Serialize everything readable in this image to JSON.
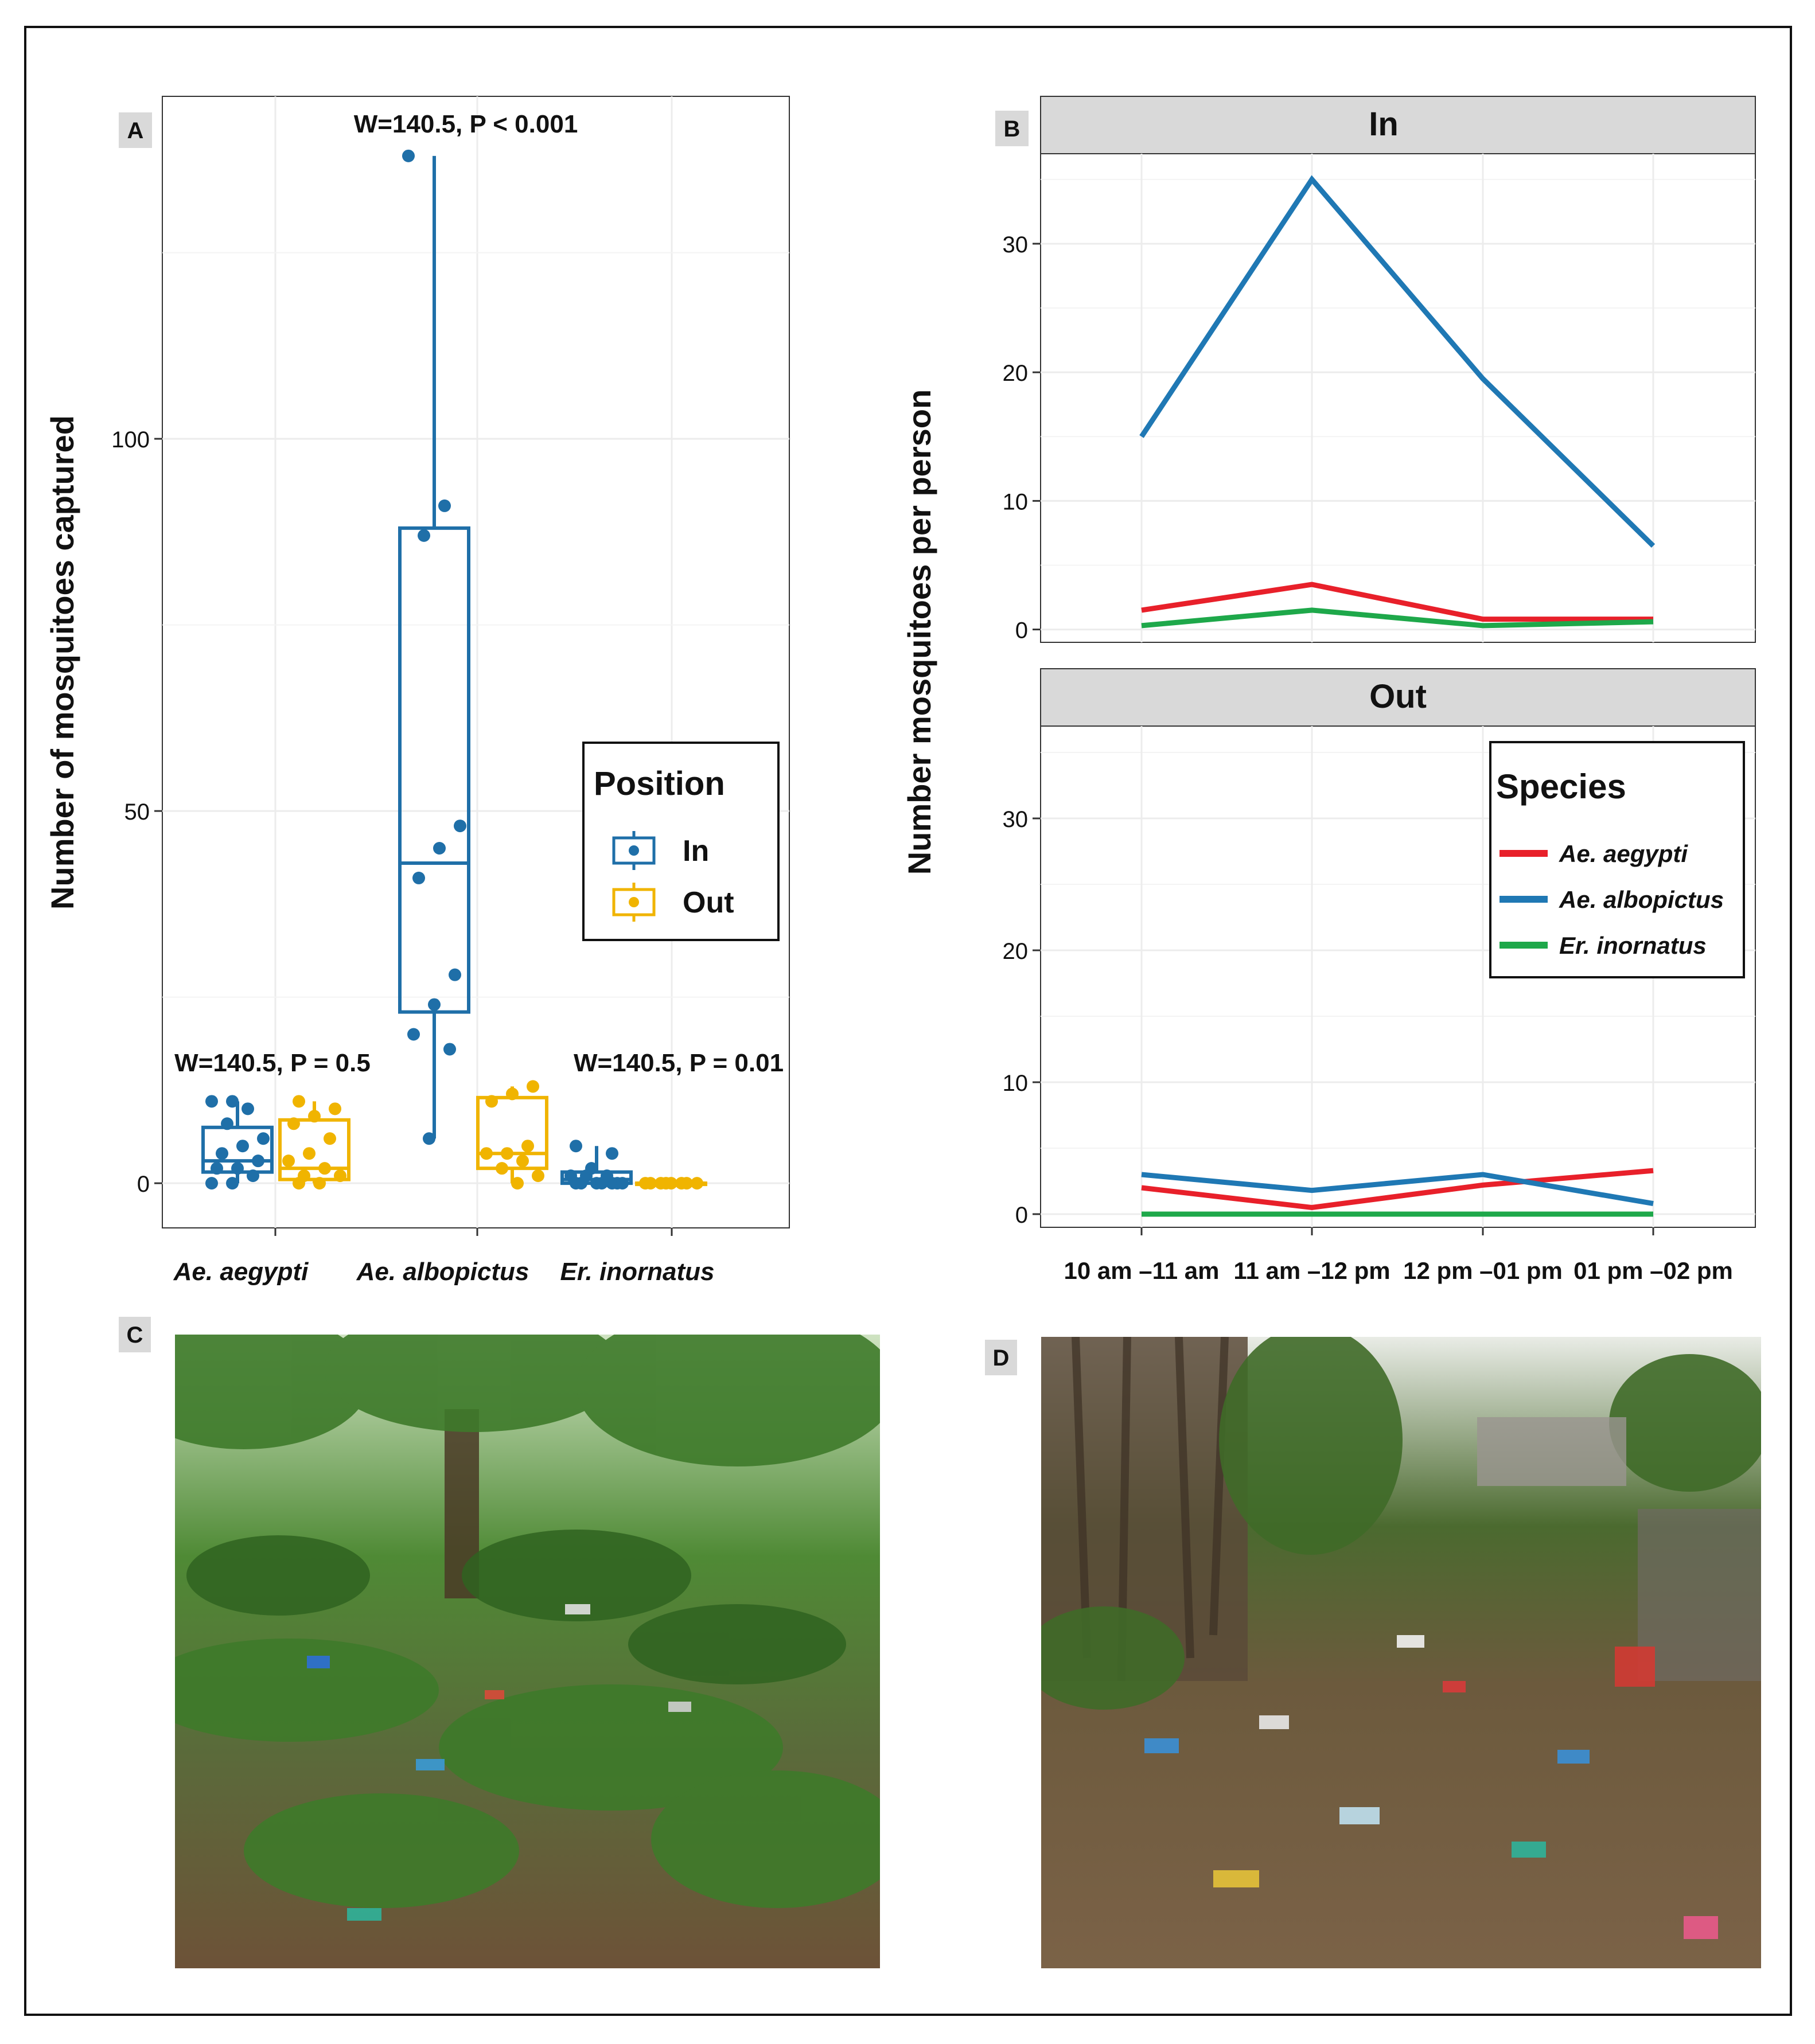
{
  "panels": {
    "A": {
      "label": "A"
    },
    "B": {
      "label": "B"
    },
    "C": {
      "label": "C"
    },
    "D": {
      "label": "D"
    }
  },
  "colors": {
    "in": "#1f6fa8",
    "out": "#f0b400",
    "aegypti": "#e8202a",
    "albopictus": "#1f78b4",
    "inornatus": "#1ea84a",
    "strip_bg": "#d9d9d9",
    "grid": "#ececec"
  },
  "chart_data": [
    {
      "type": "box",
      "ylabel": "Number of mosquitoes captured",
      "xlabel": "",
      "ylim": [
        -6,
        146
      ],
      "yticks": [
        0,
        50,
        100
      ],
      "categories": [
        "Ae. aegypti",
        "Ae. albopictus",
        "Er. inornatus"
      ],
      "annotations": [
        "W=140.5, P = 0.5",
        "W=140.5, P < 0.001",
        "W=140.5, P = 0.01"
      ],
      "legend": {
        "title": "Position",
        "position": "right",
        "entries": [
          "In",
          "Out"
        ]
      },
      "groups": [
        {
          "category": "Ae. aegypti",
          "position": "In",
          "min": 0,
          "q1": 1.5,
          "median": 3,
          "q3": 7.5,
          "max": 11,
          "points": [
            0,
            0,
            1,
            2,
            2,
            3,
            4,
            5,
            6,
            8,
            10,
            11,
            11
          ]
        },
        {
          "category": "Ae. aegypti",
          "position": "Out",
          "min": 0,
          "q1": 0.5,
          "median": 2,
          "q3": 8.5,
          "max": 11,
          "points": [
            0,
            0,
            1,
            1,
            2,
            3,
            4,
            6,
            8,
            9,
            10,
            11
          ]
        },
        {
          "category": "Ae. albopictus",
          "position": "In",
          "min": 6,
          "q1": 23,
          "median": 43,
          "q3": 88,
          "max": 138,
          "points": [
            6,
            18,
            20,
            24,
            28,
            41,
            45,
            48,
            87,
            91,
            138
          ]
        },
        {
          "category": "Ae. albopictus",
          "position": "Out",
          "min": 0,
          "q1": 2,
          "median": 4,
          "q3": 11.5,
          "max": 13,
          "points": [
            0,
            1,
            2,
            3,
            4,
            4,
            5,
            11,
            12,
            13
          ]
        },
        {
          "category": "Er. inornatus",
          "position": "In",
          "min": 0,
          "q1": 0,
          "median": 0.5,
          "q3": 1.5,
          "max": 5,
          "points": [
            0,
            0,
            0,
            0,
            0,
            0,
            0,
            1,
            1,
            1,
            2,
            4,
            5
          ]
        },
        {
          "category": "Er. inornatus",
          "position": "Out",
          "min": 0,
          "q1": 0,
          "median": 0,
          "q3": 0,
          "max": 0,
          "points": [
            0,
            0,
            0,
            0,
            0,
            0,
            0,
            0
          ]
        }
      ]
    },
    {
      "type": "line",
      "ylabel": "Number mosquitoes per person",
      "x": [
        "10 am –11 am",
        "11 am –12 pm",
        "12 pm –01 pm",
        "01 pm –02 pm"
      ],
      "ylim": [
        -1,
        37
      ],
      "yticks": [
        0,
        10,
        20,
        30
      ],
      "legend": {
        "title": "Species",
        "position": "inside top-right of Out panel"
      },
      "facets": [
        {
          "name": "In",
          "series": [
            {
              "name": "Ae. aegypti",
              "values": [
                1.5,
                3.5,
                0.8,
                0.8
              ]
            },
            {
              "name": "Ae. albopictus",
              "values": [
                15,
                35,
                19.5,
                6.5
              ]
            },
            {
              "name": "Er. inornatus",
              "values": [
                0.3,
                1.5,
                0.3,
                0.6
              ]
            }
          ]
        },
        {
          "name": "Out",
          "series": [
            {
              "name": "Ae. aegypti",
              "values": [
                2,
                0.5,
                2.2,
                3.3
              ]
            },
            {
              "name": "Ae. albopictus",
              "values": [
                3,
                1.8,
                3,
                0.8
              ]
            },
            {
              "name": "Er. inornatus",
              "values": [
                0,
                0,
                0,
                0
              ]
            }
          ]
        }
      ]
    }
  ],
  "photos": {
    "C": {
      "sky": "#cfe3c2",
      "foliage": "#3e7a2a",
      "ground": "#6d5238"
    },
    "D": {
      "sky": "#e9ece6",
      "foliage": "#4b6a2f",
      "ground": "#7b6247"
    }
  }
}
